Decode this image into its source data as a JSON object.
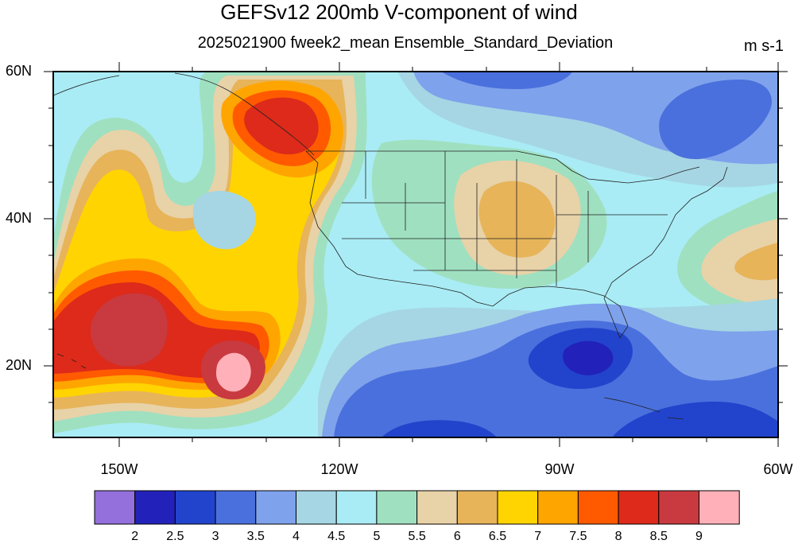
{
  "title": "GEFSv12 200mb V-component of wind",
  "subtitle": "2025021900 fweek2_mean Ensemble_Standard_Deviation",
  "units": "m s-1",
  "lat_labels": [
    "60N",
    "40N",
    "20N"
  ],
  "lon_labels": [
    "150W",
    "120W",
    "90W",
    "60W"
  ],
  "colorbar": {
    "labels": [
      "2",
      "2.5",
      "3",
      "3.5",
      "4",
      "4.5",
      "5",
      "5.5",
      "6",
      "6.5",
      "7",
      "7.5",
      "8",
      "8.5",
      "9"
    ],
    "colors": [
      "#9370db",
      "#2222bb",
      "#2244cc",
      "#4a70dd",
      "#7fa2ec",
      "#a6d6e4",
      "#a9ecf5",
      "#9fe0c0",
      "#e8d2a8",
      "#e7b45a",
      "#ffd400",
      "#ffa500",
      "#ff5a00",
      "#dd2a1a",
      "#c83a3f",
      "#ffb0b8"
    ]
  }
}
